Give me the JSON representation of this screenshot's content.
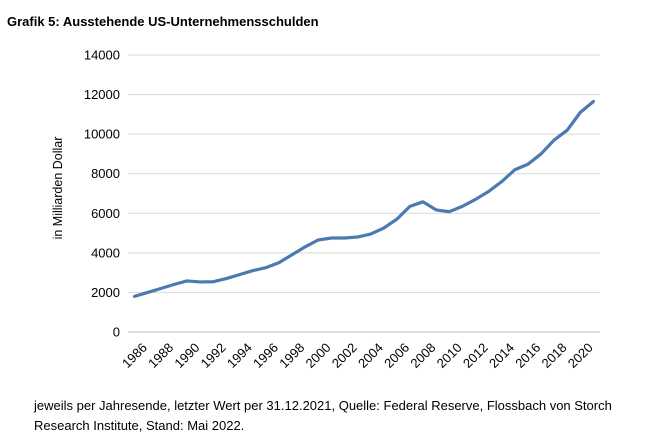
{
  "chart_data": {
    "type": "line",
    "title": "Grafik 5: Ausstehende US-Unternehmensschulden",
    "ylabel": "in Milliarden Dollar",
    "xlabel": "",
    "ylim": [
      0,
      14000
    ],
    "yticks": [
      "0",
      "2000",
      "4000",
      "6000",
      "8000",
      "10000",
      "12000",
      "14000"
    ],
    "xticks": [
      "1986",
      "1988",
      "1990",
      "1992",
      "1994",
      "1996",
      "1998",
      "2000",
      "2002",
      "2004",
      "2006",
      "2008",
      "2010",
      "2012",
      "2014",
      "2016",
      "2018",
      "2020"
    ],
    "grid": true,
    "legend": "none",
    "series_color": "#4a7ab0",
    "x": [
      1986,
      1987,
      1988,
      1989,
      1990,
      1991,
      1992,
      1993,
      1994,
      1995,
      1996,
      1997,
      1998,
      1999,
      2000,
      2001,
      2002,
      2003,
      2004,
      2005,
      2006,
      2007,
      2008,
      2009,
      2010,
      2011,
      2012,
      2013,
      2014,
      2015,
      2016,
      2017,
      2018,
      2019,
      2020,
      2021
    ],
    "series": [
      {
        "values": [
          1800,
          2000,
          2200,
          2400,
          2580,
          2530,
          2540,
          2700,
          2900,
          3100,
          3250,
          3500,
          3900,
          4300,
          4650,
          4750,
          4750,
          4800,
          4950,
          5250,
          5700,
          6350,
          6580,
          6170,
          6080,
          6350,
          6700,
          7100,
          7600,
          8200,
          8480,
          9000,
          9700,
          10200,
          11100,
          11650
        ]
      }
    ]
  },
  "footnote": "jeweils per Jahresende, letzter Wert per 31.12.2021, Quelle: Federal Reserve, Flossbach von Storch Research Institute, Stand: Mai 2022."
}
